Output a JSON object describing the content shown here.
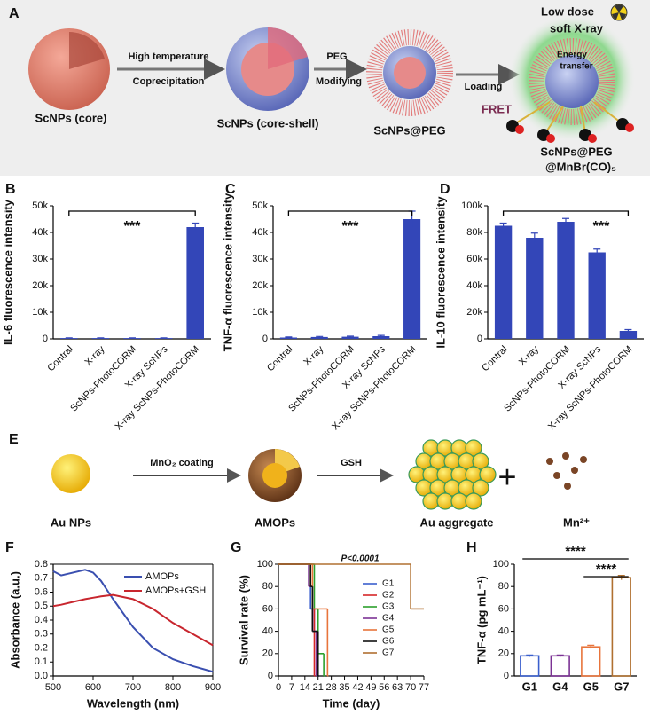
{
  "panels": {
    "A": {
      "label": "A",
      "core": "ScNPs (core)",
      "step1_top": "High temperature",
      "step1_bottom": "Coprecipitation",
      "core_shell": "ScNPs (core-shell)",
      "step2_top": "PEG",
      "step2_bottom": "Modifying",
      "peg": "ScNPs@PEG",
      "step3": "Loading",
      "xray_line1": "Low dose",
      "xray_line2": "soft X-ray",
      "energy_line1": "Energy",
      "energy_line2": "transfer",
      "fret": "FRET",
      "product_line1": "ScNPs@PEG",
      "product_line2": "@MnBr(CO)₅"
    },
    "E": {
      "label": "E",
      "au": "Au NPs",
      "step1": "MnO₂ coating",
      "amops": "AMOPs",
      "step2": "GSH",
      "aggregate": "Au aggregate",
      "plus": "+",
      "mn": "Mn²⁺"
    }
  },
  "chart_data": [
    {
      "type": "bar",
      "label": "B",
      "ylabel": "IL-6 fluorescence intensity",
      "annotation": "***",
      "color": "#3346b8",
      "categories": [
        "Contral",
        "X-ray",
        "ScNPs-PhotoCORM",
        "X-ray ScNPs",
        "X-ray ScNPs-PhotoCORM"
      ],
      "values": [
        300,
        300,
        300,
        300,
        42000
      ],
      "errors": [
        100,
        100,
        100,
        100,
        1500
      ],
      "ylim": [
        0,
        50000
      ],
      "yticks": [
        0,
        {
          "value": 10000,
          "label": "10k"
        },
        {
          "value": 20000,
          "label": "20k"
        },
        {
          "value": 30000,
          "label": "30k"
        },
        {
          "value": 40000,
          "label": "40k"
        },
        {
          "value": 50000,
          "label": "50k"
        }
      ]
    },
    {
      "type": "bar",
      "label": "C",
      "ylabel": "TNF-α fluorescence intensity",
      "annotation": "***",
      "color": "#3346b8",
      "categories": [
        "Contral",
        "X-ray",
        "ScNPs-PhotoCORM",
        "X-ray ScNPs",
        "X-ray ScNPs-PhotoCORM"
      ],
      "values": [
        500,
        700,
        800,
        1000,
        45000
      ],
      "errors": [
        200,
        200,
        200,
        300,
        3000
      ],
      "ylim": [
        0,
        50000
      ],
      "yticks": [
        0,
        {
          "value": 10000,
          "label": "10k"
        },
        {
          "value": 20000,
          "label": "20k"
        },
        {
          "value": 30000,
          "label": "30k"
        },
        {
          "value": 40000,
          "label": "40k"
        },
        {
          "value": 50000,
          "label": "50k"
        }
      ]
    },
    {
      "type": "bar",
      "label": "D",
      "ylabel": "IL-10 fluorescence intensity",
      "annotation": "***",
      "color": "#3346b8",
      "categories": [
        "Contral",
        "X-ray",
        "ScNPs-PhotoCORM",
        "X-ray ScNPs",
        "X-ray ScNPs-PhotoCORM"
      ],
      "values": [
        85000,
        76000,
        88000,
        65000,
        6000
      ],
      "errors": [
        2000,
        3500,
        2500,
        2500,
        1000
      ],
      "ylim": [
        0,
        100000
      ],
      "yticks": [
        0,
        {
          "value": 20000,
          "label": "20k"
        },
        {
          "value": 40000,
          "label": "40k"
        },
        {
          "value": 60000,
          "label": "60k"
        },
        {
          "value": 80000,
          "label": "80k"
        },
        {
          "value": 100000,
          "label": "100k"
        }
      ]
    },
    {
      "type": "line",
      "label": "F",
      "xlabel": "Wavelength (nm)",
      "ylabel": "Absorbance (a.u.)",
      "x": [
        500,
        520,
        550,
        580,
        600,
        620,
        650,
        700,
        750,
        800,
        850,
        900
      ],
      "series": [
        {
          "name": "AMOPs",
          "color": "#3a4fb0",
          "values": [
            0.75,
            0.72,
            0.74,
            0.76,
            0.74,
            0.68,
            0.55,
            0.35,
            0.2,
            0.12,
            0.07,
            0.03
          ]
        },
        {
          "name": "AMOPs+GSH",
          "color": "#c8262e",
          "values": [
            0.5,
            0.51,
            0.53,
            0.55,
            0.56,
            0.57,
            0.58,
            0.55,
            0.48,
            0.38,
            0.3,
            0.22
          ]
        }
      ],
      "xlim": [
        500,
        900
      ],
      "xticks": [
        500,
        600,
        700,
        800,
        900
      ],
      "ylim": [
        0,
        0.8
      ],
      "yticks": [
        {
          "value": 0,
          "label": "0.0"
        },
        0.1,
        0.2,
        0.3,
        0.4,
        0.5,
        0.6,
        0.7,
        0.8
      ]
    },
    {
      "type": "step",
      "label": "G",
      "xlabel": "Time (day)",
      "ylabel": "Survival rate (%)",
      "annotation": "P<0.0001",
      "series": [
        {
          "name": "G1",
          "color": "#3a5fcd",
          "x": [
            0,
            17,
            19,
            21
          ],
          "values": [
            100,
            60,
            40,
            0
          ]
        },
        {
          "name": "G2",
          "color": "#d62728",
          "x": [
            0,
            17,
            18,
            19
          ],
          "values": [
            100,
            80,
            60,
            0
          ]
        },
        {
          "name": "G3",
          "color": "#2ca02c",
          "x": [
            0,
            19,
            21,
            24
          ],
          "values": [
            100,
            60,
            20,
            0
          ]
        },
        {
          "name": "G4",
          "color": "#7b3294",
          "x": [
            0,
            16,
            18,
            20
          ],
          "values": [
            100,
            80,
            40,
            0
          ]
        },
        {
          "name": "G5",
          "color": "#e8743b",
          "x": [
            0,
            18,
            21,
            26
          ],
          "values": [
            100,
            60,
            60,
            0
          ]
        },
        {
          "name": "G6",
          "color": "#111111",
          "x": [
            0,
            17,
            18,
            21
          ],
          "values": [
            100,
            80,
            40,
            0
          ]
        },
        {
          "name": "G7",
          "color": "#b07030",
          "x": [
            0,
            70
          ],
          "values": [
            100,
            60
          ]
        }
      ],
      "xlim": [
        0,
        77
      ],
      "xticks": [
        0,
        7,
        14,
        21,
        28,
        35,
        42,
        49,
        56,
        63,
        70,
        77
      ],
      "ylim": [
        0,
        100
      ],
      "yticks": [
        0,
        20,
        40,
        60,
        80,
        100
      ]
    },
    {
      "type": "openbar",
      "label": "H",
      "ylabel": "TNF-α (pg mL⁻¹)",
      "annotations": [
        "****",
        "****"
      ],
      "categories": [
        "G1",
        "G4",
        "G5",
        "G7"
      ],
      "values": [
        18,
        18,
        26,
        88
      ],
      "errors": [
        0.8,
        0.8,
        1.5,
        2
      ],
      "colors": [
        "#3a5fcd",
        "#7b3294",
        "#e8743b",
        "#b07030"
      ],
      "ylim": [
        0,
        100
      ],
      "yticks": [
        0,
        20,
        40,
        60,
        80,
        100
      ]
    }
  ]
}
